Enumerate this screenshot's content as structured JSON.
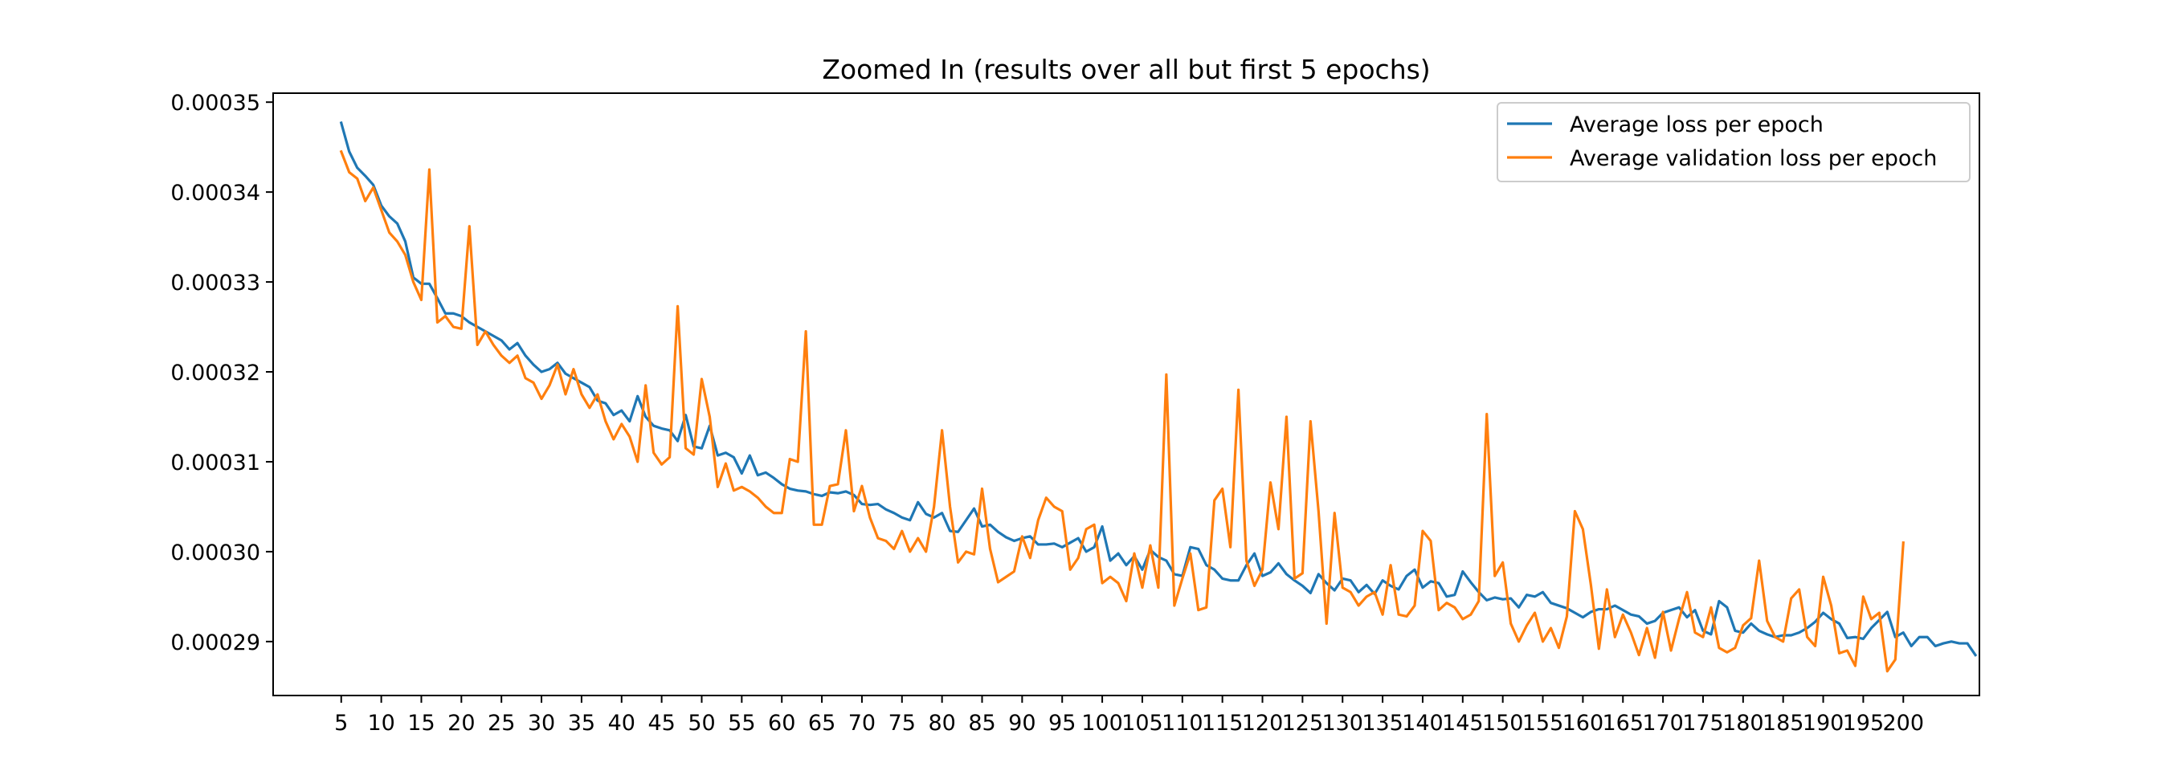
{
  "chart_data": {
    "type": "line",
    "title": "Zoomed In (results over all but first 5 epochs)",
    "xlabel": "",
    "ylabel": "",
    "xlim": [
      -3.5,
      209.5
    ],
    "ylim": [
      0.000284,
      0.000351
    ],
    "x_ticks": [
      5,
      10,
      15,
      20,
      25,
      30,
      35,
      40,
      45,
      50,
      55,
      60,
      65,
      70,
      75,
      80,
      85,
      90,
      95,
      100,
      105,
      110,
      115,
      120,
      125,
      130,
      135,
      140,
      145,
      150,
      155,
      160,
      165,
      170,
      175,
      180,
      185,
      190,
      195,
      200
    ],
    "y_ticks": [
      0.00029,
      0.0003,
      0.00031,
      0.00032,
      0.00033,
      0.00034,
      0.00035
    ],
    "y_tick_labels": [
      "0.00029",
      "0.00030",
      "0.00031",
      "0.00032",
      "0.00033",
      "0.00034",
      "0.00035"
    ],
    "x_start": 5,
    "grid": false,
    "legend_position": "top-right",
    "series": [
      {
        "name": "Average loss per epoch",
        "color": "#1f77b4",
        "values": [
          0.0003477,
          0.0003445,
          0.0003427,
          0.0003418,
          0.0003408,
          0.0003385,
          0.0003373,
          0.0003365,
          0.0003345,
          0.0003305,
          0.0003298,
          0.0003298,
          0.0003282,
          0.0003265,
          0.0003265,
          0.0003262,
          0.0003255,
          0.000325,
          0.0003245,
          0.000324,
          0.0003235,
          0.0003225,
          0.0003232,
          0.0003218,
          0.0003208,
          0.00032,
          0.0003203,
          0.000321,
          0.0003198,
          0.0003193,
          0.0003188,
          0.0003183,
          0.0003168,
          0.0003165,
          0.0003152,
          0.0003157,
          0.0003145,
          0.0003173,
          0.000315,
          0.000314,
          0.0003137,
          0.0003135,
          0.0003123,
          0.0003152,
          0.0003117,
          0.0003115,
          0.000314,
          0.0003107,
          0.000311,
          0.0003105,
          0.0003087,
          0.0003107,
          0.0003085,
          0.0003088,
          0.0003082,
          0.0003075,
          0.000307,
          0.0003068,
          0.0003067,
          0.0003064,
          0.0003062,
          0.0003066,
          0.0003065,
          0.0003067,
          0.0003063,
          0.0003053,
          0.0003052,
          0.0003053,
          0.0003047,
          0.0003043,
          0.0003038,
          0.0003035,
          0.0003055,
          0.0003042,
          0.0003038,
          0.0003043,
          0.0003023,
          0.0003022,
          0.0003035,
          0.0003048,
          0.0003028,
          0.000303,
          0.0003022,
          0.0003016,
          0.0003012,
          0.0003015,
          0.0003017,
          0.0003008,
          0.0003008,
          0.0003009,
          0.0003005,
          0.000301,
          0.0003015,
          0.0003,
          0.0003005,
          0.0003028,
          0.000299,
          0.0002998,
          0.0002985,
          0.0002995,
          0.000298,
          0.0003002,
          0.0002994,
          0.000299,
          0.0002975,
          0.0002973,
          0.0003005,
          0.0003003,
          0.0002985,
          0.000298,
          0.000297,
          0.0002968,
          0.0002968,
          0.0002985,
          0.0002998,
          0.0002973,
          0.0002977,
          0.0002987,
          0.0002975,
          0.0002968,
          0.0002962,
          0.0002954,
          0.0002975,
          0.0002965,
          0.0002957,
          0.000297,
          0.0002968,
          0.0002955,
          0.0002963,
          0.0002953,
          0.0002968,
          0.0002962,
          0.0002958,
          0.0002973,
          0.000298,
          0.000296,
          0.0002967,
          0.0002965,
          0.000295,
          0.0002952,
          0.0002978,
          0.0002966,
          0.0002955,
          0.0002946,
          0.0002949,
          0.0002947,
          0.0002948,
          0.0002938,
          0.0002952,
          0.000295,
          0.0002955,
          0.0002943,
          0.000294,
          0.0002937,
          0.0002932,
          0.0002927,
          0.0002933,
          0.0002936,
          0.0002936,
          0.000294,
          0.0002935,
          0.000293,
          0.0002928,
          0.000292,
          0.0002923,
          0.0002932,
          0.0002935,
          0.0002938,
          0.0002927,
          0.0002935,
          0.0002912,
          0.0002908,
          0.0002945,
          0.0002938,
          0.0002912,
          0.000291,
          0.000292,
          0.0002912,
          0.0002908,
          0.0002905,
          0.0002907,
          0.0002907,
          0.000291,
          0.0002915,
          0.0002922,
          0.0002932,
          0.0002925,
          0.000292,
          0.0002904,
          0.0002905,
          0.0002903,
          0.0002915,
          0.0002924,
          0.0002933,
          0.0002905,
          0.000291,
          0.0002895,
          0.0002905,
          0.0002905,
          0.0002895,
          0.0002898,
          0.00029,
          0.0002898,
          0.0002898,
          0.0002885
        ]
      },
      {
        "name": "Average validation loss per epoch",
        "color": "#ff7f0e",
        "values": [
          0.0003445,
          0.0003422,
          0.0003415,
          0.000339,
          0.0003405,
          0.000338,
          0.0003355,
          0.0003345,
          0.000333,
          0.00033,
          0.000328,
          0.0003425,
          0.0003255,
          0.0003262,
          0.000325,
          0.0003248,
          0.0003362,
          0.000323,
          0.0003245,
          0.000323,
          0.0003218,
          0.000321,
          0.0003218,
          0.0003193,
          0.0003188,
          0.000317,
          0.0003185,
          0.0003208,
          0.0003175,
          0.0003203,
          0.0003175,
          0.000316,
          0.0003175,
          0.0003145,
          0.0003125,
          0.0003142,
          0.0003128,
          0.00031,
          0.0003185,
          0.000311,
          0.0003097,
          0.0003105,
          0.0003273,
          0.0003115,
          0.0003108,
          0.0003192,
          0.000315,
          0.0003072,
          0.0003098,
          0.0003068,
          0.0003072,
          0.0003067,
          0.000306,
          0.000305,
          0.0003043,
          0.0003043,
          0.0003103,
          0.00031,
          0.0003245,
          0.000303,
          0.000303,
          0.0003073,
          0.0003075,
          0.0003135,
          0.0003045,
          0.0003073,
          0.0003038,
          0.0003015,
          0.0003012,
          0.0003003,
          0.0003023,
          0.0003,
          0.0003015,
          0.0003,
          0.000305,
          0.0003135,
          0.000305,
          0.0002988,
          0.0003,
          0.0002997,
          0.000307,
          0.0003003,
          0.0002966,
          0.0002972,
          0.0002978,
          0.0003017,
          0.0002993,
          0.0003035,
          0.000306,
          0.000305,
          0.0003045,
          0.000298,
          0.0002993,
          0.0003025,
          0.000303,
          0.0002965,
          0.0002972,
          0.0002965,
          0.0002945,
          0.0002998,
          0.000296,
          0.0003007,
          0.000296,
          0.0003197,
          0.000294,
          0.000297,
          0.0002998,
          0.0002935,
          0.0002938,
          0.0003057,
          0.000307,
          0.0003005,
          0.000318,
          0.000299,
          0.0002962,
          0.000298,
          0.0003077,
          0.0003025,
          0.000315,
          0.000297,
          0.0002976,
          0.0003145,
          0.0003045,
          0.000292,
          0.0003043,
          0.000296,
          0.0002955,
          0.000294,
          0.000295,
          0.0002955,
          0.000293,
          0.0002985,
          0.000293,
          0.0002928,
          0.000294,
          0.0003023,
          0.0003012,
          0.0002935,
          0.0002943,
          0.0002938,
          0.0002925,
          0.000293,
          0.0002945,
          0.0003153,
          0.0002973,
          0.0002988,
          0.000292,
          0.00029,
          0.0002918,
          0.0002932,
          0.00029,
          0.0002915,
          0.0002893,
          0.0002928,
          0.0003045,
          0.0003025,
          0.0002963,
          0.0002892,
          0.0002958,
          0.0002905,
          0.000293,
          0.000291,
          0.0002885,
          0.0002915,
          0.0002882,
          0.0002933,
          0.000289,
          0.0002925,
          0.0002955,
          0.000291,
          0.0002905,
          0.0002938,
          0.0002893,
          0.0002888,
          0.0002893,
          0.0002918,
          0.0002926,
          0.000299,
          0.0002923,
          0.0002905,
          0.00029,
          0.0002948,
          0.0002958,
          0.0002905,
          0.0002895,
          0.0002972,
          0.000294,
          0.0002887,
          0.000289,
          0.0002873,
          0.000295,
          0.0002925,
          0.0002932,
          0.0002867,
          0.000288,
          0.000301
        ]
      }
    ]
  }
}
